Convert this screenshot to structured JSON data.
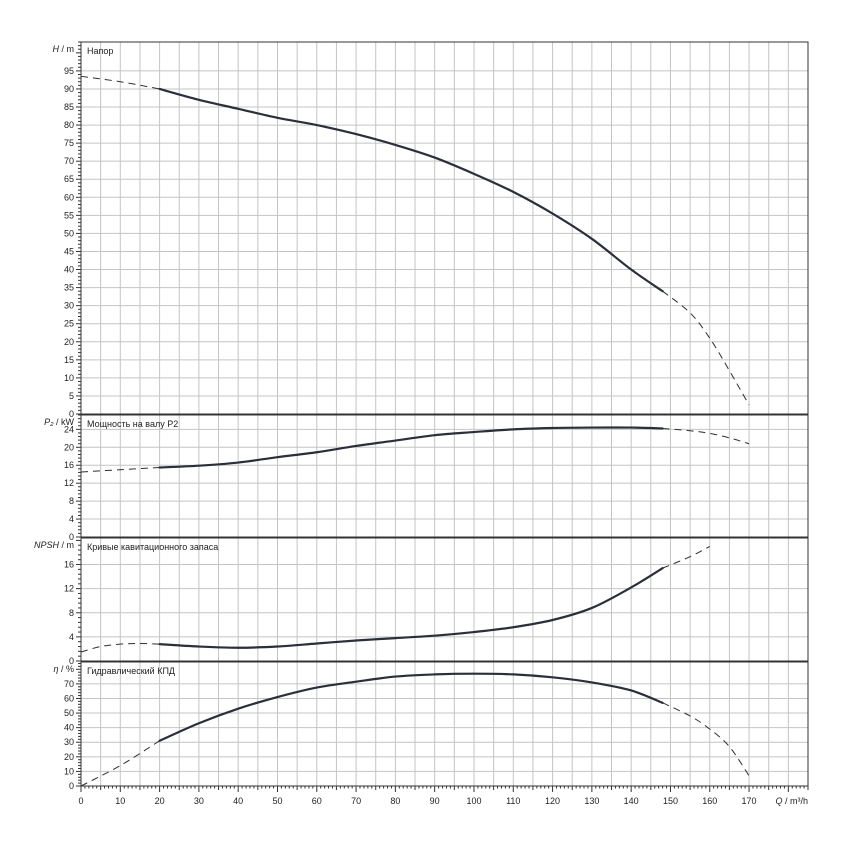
{
  "chart_data": {
    "type": "line",
    "x_axis": {
      "label": "Q",
      "unit": "m³/h",
      "range": [
        0,
        185
      ],
      "ticks": [
        0,
        10,
        20,
        30,
        40,
        50,
        60,
        70,
        80,
        90,
        100,
        110,
        120,
        130,
        140,
        150,
        160,
        170
      ]
    },
    "panels": [
      {
        "id": "head",
        "title": "Напор",
        "y_label": "H",
        "y_unit": "m",
        "y_range": [
          0,
          103
        ],
        "y_ticks": [
          0,
          5,
          10,
          15,
          20,
          25,
          30,
          35,
          40,
          45,
          50,
          55,
          60,
          65,
          70,
          75,
          80,
          85,
          90,
          95
        ],
        "series": {
          "solid": [
            [
              20,
              90
            ],
            [
              30,
              87
            ],
            [
              40,
              84.5
            ],
            [
              50,
              82
            ],
            [
              60,
              80
            ],
            [
              70,
              77.5
            ],
            [
              80,
              74.5
            ],
            [
              90,
              71
            ],
            [
              100,
              66.5
            ],
            [
              110,
              61.5
            ],
            [
              120,
              55.5
            ],
            [
              130,
              48.5
            ],
            [
              140,
              40
            ],
            [
              148,
              34
            ]
          ],
          "dashed_left": [
            [
              0,
              93.5
            ],
            [
              10,
              92
            ],
            [
              20,
              90
            ]
          ],
          "dashed_right": [
            [
              148,
              34
            ],
            [
              155,
              28
            ],
            [
              160,
              21
            ],
            [
              165,
              12
            ],
            [
              170,
              2.5
            ]
          ]
        }
      },
      {
        "id": "power",
        "title": "Мощность на валу P2",
        "y_label": "P₂",
        "y_unit": "kW",
        "y_range": [
          0,
          27.2
        ],
        "y_ticks": [
          0,
          4,
          8,
          12,
          16,
          20,
          24
        ],
        "series": {
          "solid": [
            [
              20,
              15.5
            ],
            [
              30,
              15.9
            ],
            [
              40,
              16.6
            ],
            [
              50,
              17.8
            ],
            [
              60,
              18.9
            ],
            [
              70,
              20.3
            ],
            [
              80,
              21.5
            ],
            [
              90,
              22.7
            ],
            [
              100,
              23.4
            ],
            [
              110,
              24.0
            ],
            [
              120,
              24.3
            ],
            [
              130,
              24.4
            ],
            [
              140,
              24.4
            ],
            [
              148,
              24.2
            ]
          ],
          "dashed_left": [
            [
              0,
              14.5
            ],
            [
              10,
              15
            ],
            [
              20,
              15.5
            ]
          ],
          "dashed_right": [
            [
              148,
              24.2
            ],
            [
              155,
              23.7
            ],
            [
              160,
              23.1
            ],
            [
              165,
              22.1
            ],
            [
              170,
              20.8
            ]
          ]
        }
      },
      {
        "id": "npsh",
        "title": "Кривые кавитационного запаса",
        "y_label": "NPSH",
        "y_unit": "m",
        "y_range": [
          0,
          20.4
        ],
        "y_ticks": [
          0,
          4,
          8,
          12,
          16
        ],
        "series": {
          "solid": [
            [
              20,
              2.8
            ],
            [
              30,
              2.4
            ],
            [
              40,
              2.2
            ],
            [
              50,
              2.4
            ],
            [
              60,
              2.9
            ],
            [
              70,
              3.4
            ],
            [
              80,
              3.8
            ],
            [
              90,
              4.2
            ],
            [
              100,
              4.8
            ],
            [
              110,
              5.6
            ],
            [
              120,
              6.8
            ],
            [
              130,
              8.8
            ],
            [
              140,
              12.2
            ],
            [
              148,
              15.4
            ]
          ],
          "dashed_left": [
            [
              0,
              1.5
            ],
            [
              5,
              2.4
            ],
            [
              10,
              2.8
            ],
            [
              15,
              2.9
            ],
            [
              20,
              2.8
            ]
          ],
          "dashed_right": [
            [
              148,
              15.4
            ],
            [
              155,
              17.3
            ],
            [
              160,
              19.0
            ]
          ]
        }
      },
      {
        "id": "efficiency",
        "title": "Гидравлический КПД",
        "y_label": "η",
        "y_unit": "%",
        "y_range": [
          0,
          85
        ],
        "y_ticks": [
          0,
          10,
          20,
          30,
          40,
          50,
          60,
          70
        ],
        "series": {
          "solid": [
            [
              20,
              31
            ],
            [
              30,
              43
            ],
            [
              40,
              53
            ],
            [
              50,
              61
            ],
            [
              60,
              67.5
            ],
            [
              70,
              71.5
            ],
            [
              80,
              75
            ],
            [
              90,
              76.5
            ],
            [
              100,
              77
            ],
            [
              110,
              76.5
            ],
            [
              120,
              74.5
            ],
            [
              130,
              71
            ],
            [
              140,
              65.5
            ],
            [
              148,
              57
            ]
          ],
          "dashed_left": [
            [
              0,
              0
            ],
            [
              10,
              14
            ],
            [
              20,
              31
            ]
          ],
          "dashed_right": [
            [
              148,
              57
            ],
            [
              155,
              48
            ],
            [
              160,
              39
            ],
            [
              165,
              27
            ],
            [
              170,
              7
            ]
          ]
        }
      }
    ],
    "grid": true,
    "line_color": "#2b2f3a"
  }
}
